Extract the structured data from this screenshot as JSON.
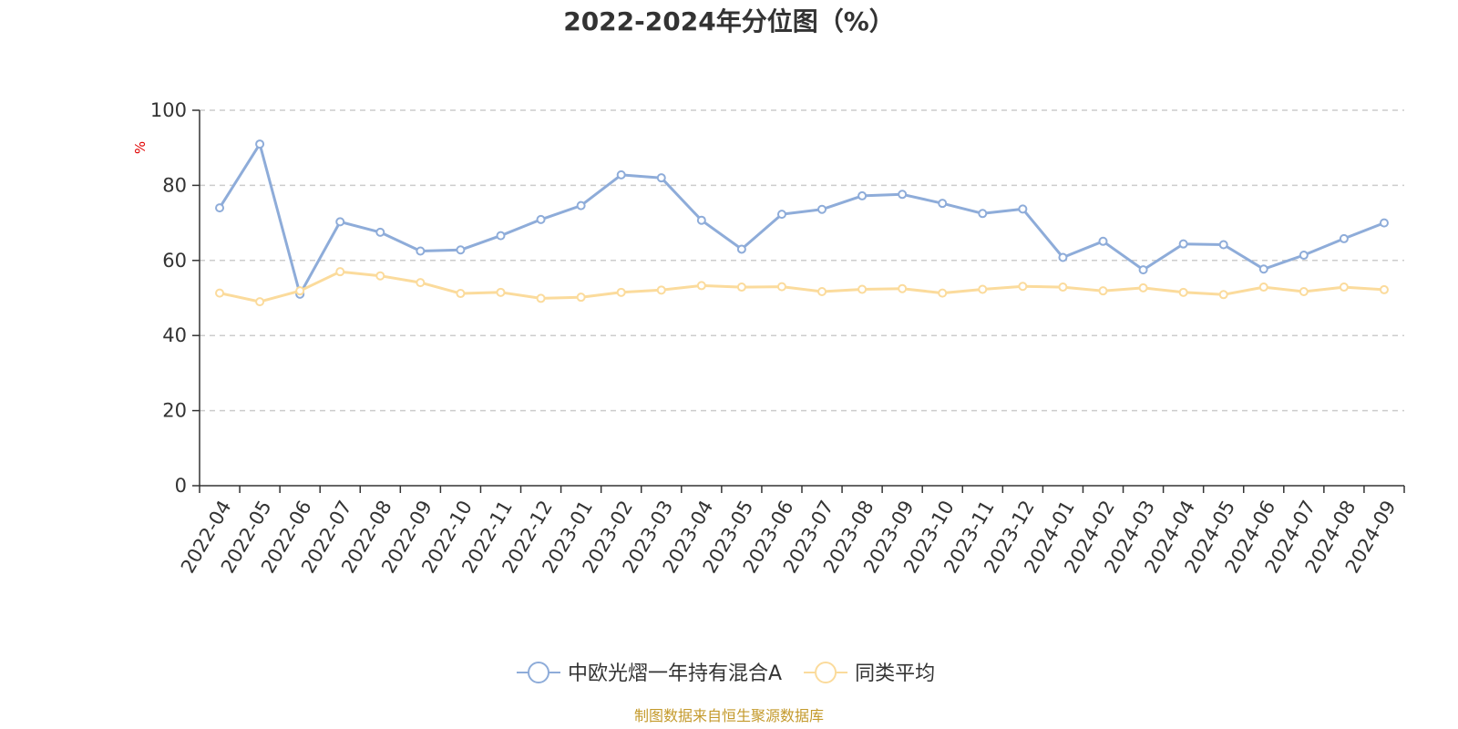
{
  "chart_data": {
    "type": "line",
    "title": "2022-2024年分位图（%）",
    "y_unit": "%",
    "ylim": [
      0,
      100
    ],
    "y_ticks": [
      0,
      20,
      40,
      60,
      80,
      100
    ],
    "grid": true,
    "legend_position": "bottom-center",
    "categories": [
      "2022-04",
      "2022-05",
      "2022-06",
      "2022-07",
      "2022-08",
      "2022-09",
      "2022-10",
      "2022-11",
      "2022-12",
      "2023-01",
      "2023-02",
      "2023-03",
      "2023-04",
      "2023-05",
      "2023-06",
      "2023-07",
      "2023-08",
      "2023-09",
      "2023-10",
      "2023-11",
      "2023-12",
      "2024-01",
      "2024-02",
      "2024-03",
      "2024-04",
      "2024-05",
      "2024-06",
      "2024-07",
      "2024-08",
      "2024-09"
    ],
    "series": [
      {
        "name": "中欧光熠一年持有混合A",
        "color": "#8eacd9",
        "values": [
          74.0,
          91.0,
          51.0,
          70.3,
          67.5,
          62.5,
          62.8,
          66.6,
          70.9,
          74.6,
          82.8,
          82.0,
          70.7,
          63.0,
          72.3,
          73.6,
          77.2,
          77.6,
          75.2,
          72.5,
          73.7,
          60.8,
          65.1,
          57.5,
          64.4,
          64.2,
          57.7,
          61.4,
          65.8,
          70.0
        ]
      },
      {
        "name": "同类平均",
        "color": "#fbdb9c",
        "values": [
          51.3,
          49.0,
          51.9,
          57.0,
          55.9,
          54.1,
          51.2,
          51.5,
          49.9,
          50.2,
          51.5,
          52.1,
          53.3,
          52.9,
          53.0,
          51.7,
          52.3,
          52.5,
          51.3,
          52.3,
          53.1,
          52.9,
          51.9,
          52.7,
          51.5,
          50.9,
          52.9,
          51.7,
          52.9,
          52.2
        ]
      }
    ]
  },
  "footer": {
    "source": "制图数据来自恒生聚源数据库",
    "source_color": "#c49a2c"
  }
}
